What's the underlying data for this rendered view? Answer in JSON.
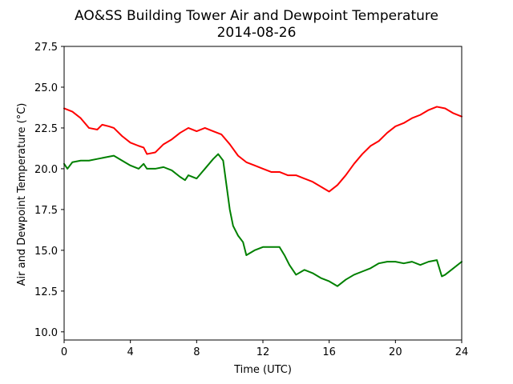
{
  "chart_data": {
    "type": "line",
    "title": "AO&SS Building Tower Air and Dewpoint Temperature",
    "subtitle": "2014-08-26",
    "xlabel": "Time (UTC)",
    "ylabel": "Air and Dewpoint Temperature (°C)",
    "xlim": [
      0,
      24
    ],
    "ylim": [
      9.5,
      27.5
    ],
    "xticks": [
      "0",
      "4",
      "8",
      "12",
      "16",
      "20",
      "24"
    ],
    "yticks": [
      "10.0",
      "12.5",
      "15.0",
      "17.5",
      "20.0",
      "22.5",
      "25.0",
      "27.5"
    ],
    "grid": false,
    "legend": "none",
    "series": [
      {
        "color": "#ff0000",
        "points": [
          [
            0.0,
            23.7
          ],
          [
            0.5,
            23.5
          ],
          [
            1.0,
            23.1
          ],
          [
            1.5,
            22.5
          ],
          [
            2.0,
            22.4
          ],
          [
            2.3,
            22.7
          ],
          [
            2.7,
            22.6
          ],
          [
            3.0,
            22.5
          ],
          [
            3.5,
            22.0
          ],
          [
            4.0,
            21.6
          ],
          [
            4.5,
            21.4
          ],
          [
            4.8,
            21.3
          ],
          [
            5.0,
            20.9
          ],
          [
            5.5,
            21.0
          ],
          [
            6.0,
            21.5
          ],
          [
            6.5,
            21.8
          ],
          [
            7.0,
            22.2
          ],
          [
            7.5,
            22.5
          ],
          [
            8.0,
            22.3
          ],
          [
            8.5,
            22.5
          ],
          [
            9.0,
            22.3
          ],
          [
            9.5,
            22.1
          ],
          [
            10.0,
            21.5
          ],
          [
            10.5,
            20.8
          ],
          [
            11.0,
            20.4
          ],
          [
            11.5,
            20.2
          ],
          [
            12.0,
            20.0
          ],
          [
            12.5,
            19.8
          ],
          [
            13.0,
            19.8
          ],
          [
            13.5,
            19.6
          ],
          [
            14.0,
            19.6
          ],
          [
            14.5,
            19.4
          ],
          [
            15.0,
            19.2
          ],
          [
            15.5,
            18.9
          ],
          [
            16.0,
            18.6
          ],
          [
            16.5,
            19.0
          ],
          [
            17.0,
            19.6
          ],
          [
            17.5,
            20.3
          ],
          [
            18.0,
            20.9
          ],
          [
            18.5,
            21.4
          ],
          [
            19.0,
            21.7
          ],
          [
            19.5,
            22.2
          ],
          [
            20.0,
            22.6
          ],
          [
            20.5,
            22.8
          ],
          [
            21.0,
            23.1
          ],
          [
            21.5,
            23.3
          ],
          [
            22.0,
            23.6
          ],
          [
            22.5,
            23.8
          ],
          [
            23.0,
            23.7
          ],
          [
            23.5,
            23.4
          ],
          [
            24.0,
            23.2
          ]
        ]
      },
      {
        "color": "#008000",
        "points": [
          [
            0.0,
            20.3
          ],
          [
            0.2,
            20.0
          ],
          [
            0.5,
            20.4
          ],
          [
            1.0,
            20.5
          ],
          [
            1.5,
            20.5
          ],
          [
            2.0,
            20.6
          ],
          [
            2.5,
            20.7
          ],
          [
            3.0,
            20.8
          ],
          [
            3.5,
            20.5
          ],
          [
            4.0,
            20.2
          ],
          [
            4.5,
            20.0
          ],
          [
            4.8,
            20.3
          ],
          [
            5.0,
            20.0
          ],
          [
            5.5,
            20.0
          ],
          [
            6.0,
            20.1
          ],
          [
            6.5,
            19.9
          ],
          [
            7.0,
            19.5
          ],
          [
            7.3,
            19.3
          ],
          [
            7.5,
            19.6
          ],
          [
            8.0,
            19.4
          ],
          [
            8.5,
            20.0
          ],
          [
            9.0,
            20.6
          ],
          [
            9.3,
            20.9
          ],
          [
            9.6,
            20.5
          ],
          [
            9.8,
            19.0
          ],
          [
            10.0,
            17.5
          ],
          [
            10.2,
            16.5
          ],
          [
            10.5,
            15.9
          ],
          [
            10.8,
            15.5
          ],
          [
            11.0,
            14.7
          ],
          [
            11.5,
            15.0
          ],
          [
            12.0,
            15.2
          ],
          [
            12.5,
            15.2
          ],
          [
            13.0,
            15.2
          ],
          [
            13.3,
            14.7
          ],
          [
            13.6,
            14.1
          ],
          [
            14.0,
            13.5
          ],
          [
            14.5,
            13.8
          ],
          [
            15.0,
            13.6
          ],
          [
            15.5,
            13.3
          ],
          [
            16.0,
            13.1
          ],
          [
            16.5,
            12.8
          ],
          [
            17.0,
            13.2
          ],
          [
            17.5,
            13.5
          ],
          [
            18.0,
            13.7
          ],
          [
            18.5,
            13.9
          ],
          [
            19.0,
            14.2
          ],
          [
            19.5,
            14.3
          ],
          [
            20.0,
            14.3
          ],
          [
            20.5,
            14.2
          ],
          [
            21.0,
            14.3
          ],
          [
            21.5,
            14.1
          ],
          [
            22.0,
            14.3
          ],
          [
            22.5,
            14.4
          ],
          [
            22.8,
            13.4
          ],
          [
            23.0,
            13.5
          ],
          [
            23.5,
            13.9
          ],
          [
            24.0,
            14.3
          ]
        ]
      }
    ]
  }
}
